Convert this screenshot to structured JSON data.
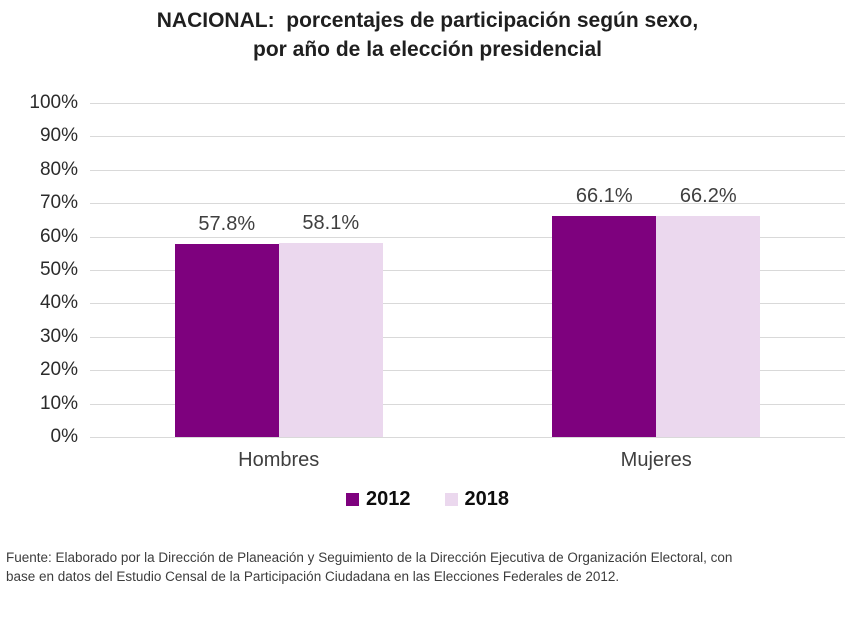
{
  "title": {
    "line1": "NACIONAL:  porcentajes de participación según sexo,",
    "line2": "por año de la elección presidencial"
  },
  "chart_data": {
    "type": "bar",
    "title": "NACIONAL: porcentajes de participación según sexo, por año de la elección presidencial",
    "categories": [
      "Hombres",
      "Mujeres"
    ],
    "series": [
      {
        "name": "2012",
        "color": "#7e017e",
        "values": [
          57.8,
          66.1
        ]
      },
      {
        "name": "2018",
        "color": "#ebd8ee",
        "values": [
          58.1,
          66.2
        ]
      }
    ],
    "value_labels": {
      "2012": [
        "57.8%",
        "66.1%"
      ],
      "2018": [
        "58.1%",
        "66.2%"
      ]
    },
    "xlabel": "",
    "ylabel": "",
    "ylim": [
      0,
      100
    ],
    "ytick_step": 10,
    "ytick_labels": [
      "0%",
      "10%",
      "20%",
      "30%",
      "40%",
      "50%",
      "60%",
      "70%",
      "80%",
      "90%",
      "100%"
    ],
    "grid": true,
    "legend_position": "bottom",
    "legend_entries": [
      "2012",
      "2018"
    ]
  },
  "footer": {
    "lines": [
      "Fuente: Elaborado por la Dirección de Planeación y Seguimiento de la Dirección Ejecutiva de Organización Electoral, con",
      "base en datos del Estudio Censal de la Participación Ciudadana en las Elecciones Federales de 2012."
    ]
  },
  "colors": {
    "series_2012": "#7e017e",
    "series_2018": "#ebd8ee",
    "gridline": "#d9d9d9",
    "label_text": "#3f3f3f",
    "title_text": "#1f1f1f"
  }
}
